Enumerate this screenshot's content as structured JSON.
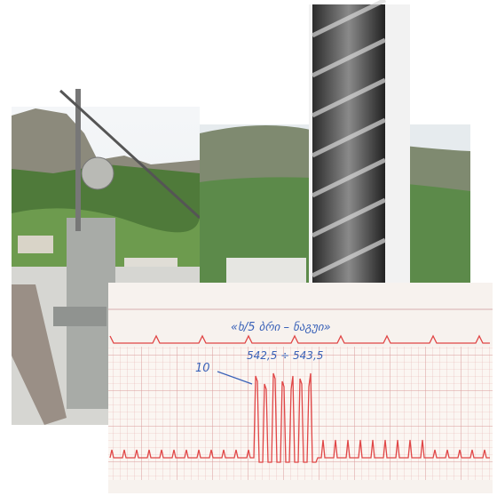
{
  "chart_strip": {
    "heading": "«ხ/5 ბრი – ნაგუი»",
    "marker": "10",
    "range": "542,5 ÷ 543,5"
  }
}
